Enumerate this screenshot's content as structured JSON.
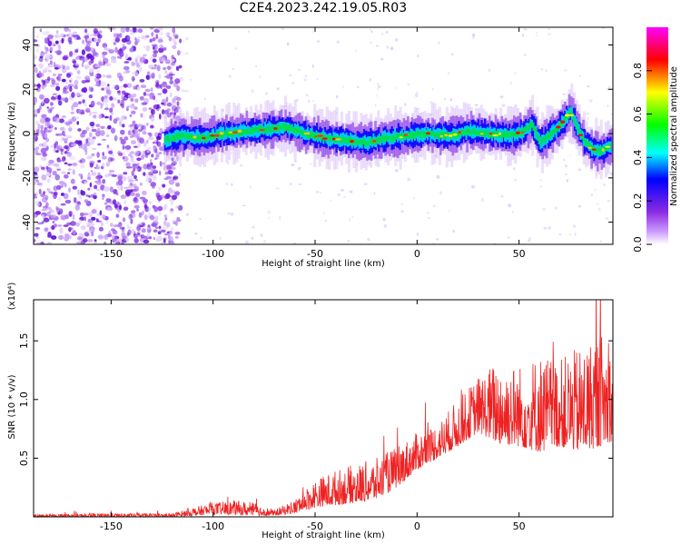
{
  "title": "C2E4.2023.242.19.05.R03",
  "chart_data": [
    {
      "type": "heatmap",
      "title": "C2E4.2023.242.19.05.R03",
      "xlabel": "Height of straight line (km)",
      "ylabel": "Frequency (Hz)",
      "xlim": [
        -188,
        96
      ],
      "ylim": [
        -50,
        48
      ],
      "x_ticks": [
        -150,
        -100,
        -50,
        0,
        50
      ],
      "y_ticks": [
        -40,
        -20,
        0,
        20,
        40
      ],
      "colorbar": {
        "label": "Normalized spectral amplitude",
        "range": [
          0,
          1
        ],
        "ticks": [
          "0.0",
          "0.2",
          "0.4",
          "0.6",
          "0.8"
        ],
        "colors": [
          "#ffffff",
          "#8a2be2",
          "#0000ff",
          "#00ffff",
          "#00ff00",
          "#ffff00",
          "#ff0000",
          "#ff00ff"
        ]
      },
      "signal_track": {
        "x": [
          -124,
          -115,
          -105,
          -95,
          -85,
          -75,
          -65,
          -55,
          -45,
          -35,
          -25,
          -15,
          -5,
          5,
          15,
          25,
          35,
          45,
          52,
          56,
          60,
          64,
          68,
          72,
          75,
          78,
          82,
          86,
          90,
          95
        ],
        "freq": [
          -3,
          -1,
          -2,
          0,
          1,
          2,
          3,
          0,
          -2,
          -3,
          -4,
          -2,
          -1,
          0,
          -1,
          1,
          0,
          -1,
          1,
          4,
          -4,
          -1,
          2,
          6,
          10,
          3,
          -4,
          -7,
          -8,
          -5
        ]
      },
      "noise_region": {
        "x_range": [
          -188,
          -120
        ],
        "description": ""
      }
    },
    {
      "type": "line",
      "title": "",
      "xlabel": "Height of straight line (km)",
      "ylabel": "SNR (10 * v/v)",
      "y_multiplier": "(x10⁴)",
      "xlim": [
        -188,
        96
      ],
      "ylim": [
        0,
        1.85
      ],
      "x_ticks": [
        -150,
        -100,
        -50,
        0,
        50
      ],
      "y_ticks": [
        "0.5",
        "1.0",
        "1.5"
      ],
      "series": [
        {
          "color": "#ee2222",
          "envelope_x": [
            -188,
            -150,
            -120,
            -110,
            -100,
            -90,
            -80,
            -70,
            -60,
            -50,
            -40,
            -30,
            -20,
            -10,
            0,
            10,
            20,
            30,
            40,
            50,
            60,
            70,
            80,
            90,
            96
          ],
          "envelope_low": [
            0.0,
            0.0,
            0.0,
            0.01,
            0.02,
            0.02,
            0.01,
            0.01,
            0.03,
            0.08,
            0.1,
            0.12,
            0.15,
            0.25,
            0.4,
            0.5,
            0.6,
            0.72,
            0.62,
            0.6,
            0.55,
            0.6,
            0.55,
            0.6,
            0.65
          ],
          "envelope_high": [
            0.02,
            0.03,
            0.03,
            0.08,
            0.12,
            0.14,
            0.12,
            0.06,
            0.15,
            0.32,
            0.4,
            0.45,
            0.5,
            0.6,
            0.72,
            0.8,
            1.0,
            1.2,
            1.35,
            1.3,
            1.4,
            1.35,
            1.45,
            1.6,
            1.4
          ]
        }
      ]
    }
  ]
}
